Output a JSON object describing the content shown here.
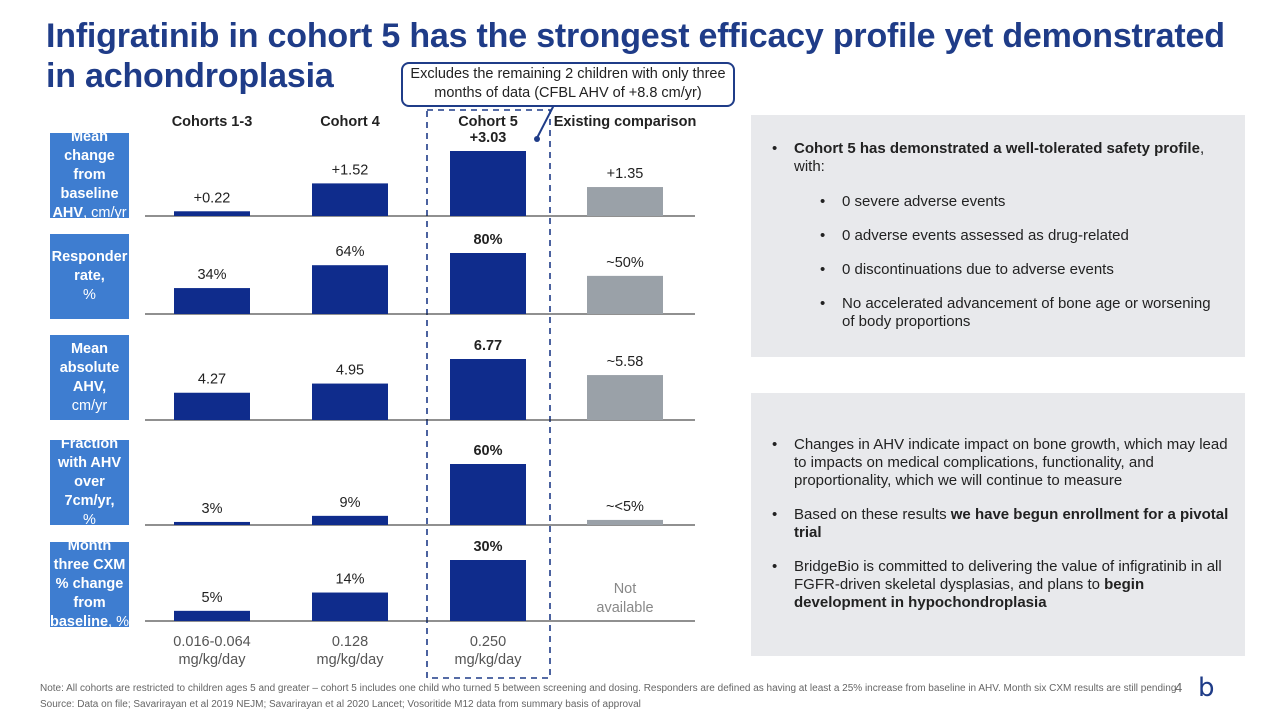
{
  "title": "Infigratinib in cohort 5 has the strongest efficacy profile yet demonstrated in achondroplasia",
  "callout": "Excludes the remaining 2 children with only three months of data (CFBL AHV of +8.8 cm/yr)",
  "row_labels": [
    {
      "bold": "Mean change from baseline AHV",
      "rest": ", cm/yr"
    },
    {
      "bold": "Responder rate,",
      "rest": "%"
    },
    {
      "bold": "Mean absolute AHV,",
      "rest": "cm/yr"
    },
    {
      "bold": "Fraction with AHV over 7cm/yr,",
      "rest": "%"
    },
    {
      "bold": "Month three CXM % change from baseline",
      "rest": ", %"
    }
  ],
  "panel_top": {
    "items": [
      {
        "bold": "Cohort 5 has demonstrated a well-tolerated safety profile",
        "text": ", with:"
      }
    ],
    "subitems": [
      "0 severe adverse events",
      "0 adverse events assessed as drug-related",
      "0 discontinuations due to adverse events",
      "No accelerated advancement of bone age or worsening of body proportions"
    ]
  },
  "panel_bottom": {
    "items": [
      {
        "pre": "Changes in AHV indicate impact on bone growth, which may lead to impacts on medical complications, functionality, and proportionality, which we will continue to measure",
        "bold": "",
        "post": ""
      },
      {
        "pre": "Based on these results ",
        "bold": "we have begun enrollment for a pivotal trial",
        "post": ""
      },
      {
        "pre": "BridgeBio is committed to delivering the value of infigratinib in all FGFR-driven skeletal dysplasias, and plans to ",
        "bold": "begin development in hypochondroplasia",
        "post": ""
      }
    ]
  },
  "note": "Note: All cohorts are restricted to children ages 5 and greater – cohort 5 includes one child who turned 5 between screening and dosing. Responders are defined as having at least a 25% increase from baseline in AHV. Month six CXM results are still pending",
  "source": "Source: Data on file; Savarirayan et al 2019 NEJM; Savarirayan et al 2020 Lancet; Vosoritide M12 data from summary basis of approval",
  "page_number": "4",
  "logo_glyph": "b",
  "colors": {
    "title": "#1f3c88",
    "bar_blue": "#0f2c8c",
    "bar_gray": "#9aa1a8",
    "label_bg": "#3e7dd0",
    "panel_bg": "#e8e9ec"
  },
  "chart_data": {
    "type": "bar",
    "categories": [
      "Cohorts 1-3",
      "Cohort 4",
      "Cohort 5",
      "Existing comparison"
    ],
    "dose_labels": [
      "0.016-0.064 mg/kg/day",
      "0.128 mg/kg/day",
      "0.250 mg/kg/day",
      ""
    ],
    "highlight_category": "Cohort 5",
    "series": [
      {
        "name": "Mean change from baseline AHV, cm/yr",
        "values": [
          0.22,
          1.52,
          3.03,
          1.35
        ],
        "labels": [
          "+0.22",
          "+1.52",
          "+3.03",
          "+1.35"
        ]
      },
      {
        "name": "Responder rate, %",
        "values": [
          34,
          64,
          80,
          50
        ],
        "labels": [
          "34%",
          "64%",
          "80%",
          "~50%"
        ]
      },
      {
        "name": "Mean absolute AHV, cm/yr",
        "values": [
          4.27,
          4.95,
          6.77,
          5.58
        ],
        "labels": [
          "4.27",
          "4.95",
          "6.77",
          "~5.58"
        ]
      },
      {
        "name": "Fraction with AHV over 7cm/yr, %",
        "values": [
          3,
          9,
          60,
          5
        ],
        "labels": [
          "3%",
          "9%",
          "60%",
          "~<5%"
        ]
      },
      {
        "name": "Month three CXM % change from baseline, %",
        "values": [
          5,
          14,
          30,
          null
        ],
        "labels": [
          "5%",
          "14%",
          "30%",
          "Not available"
        ]
      }
    ],
    "row_ylim": [
      [
        0,
        3.03
      ],
      [
        0,
        80
      ],
      [
        2.25,
        6.77
      ],
      [
        0,
        60
      ],
      [
        0,
        30
      ]
    ]
  }
}
